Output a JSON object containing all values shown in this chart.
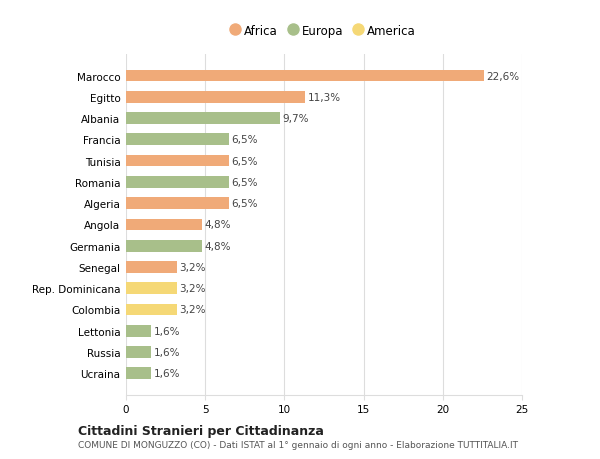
{
  "categories": [
    "Ucraina",
    "Russia",
    "Lettonia",
    "Colombia",
    "Rep. Dominicana",
    "Senegal",
    "Germania",
    "Angola",
    "Algeria",
    "Romania",
    "Tunisia",
    "Francia",
    "Albania",
    "Egitto",
    "Marocco"
  ],
  "values": [
    1.6,
    1.6,
    1.6,
    3.2,
    3.2,
    3.2,
    4.8,
    4.8,
    6.5,
    6.5,
    6.5,
    6.5,
    9.7,
    11.3,
    22.6
  ],
  "colors": [
    "#a8bf8a",
    "#a8bf8a",
    "#a8bf8a",
    "#f5d876",
    "#f5d876",
    "#f0aa78",
    "#a8bf8a",
    "#f0aa78",
    "#f0aa78",
    "#a8bf8a",
    "#f0aa78",
    "#a8bf8a",
    "#a8bf8a",
    "#f0aa78",
    "#f0aa78"
  ],
  "legend_labels": [
    "Africa",
    "Europa",
    "America"
  ],
  "legend_colors": [
    "#f0aa78",
    "#a8bf8a",
    "#f5d876"
  ],
  "title1": "Cittadini Stranieri per Cittadinanza",
  "title2": "COMUNE DI MONGUZZO (CO) - Dati ISTAT al 1° gennaio di ogni anno - Elaborazione TUTTITALIA.IT",
  "xlim": [
    0,
    25
  ],
  "xticks": [
    0,
    5,
    10,
    15,
    20,
    25
  ],
  "bar_height": 0.55,
  "background_color": "#ffffff",
  "grid_color": "#dddddd"
}
